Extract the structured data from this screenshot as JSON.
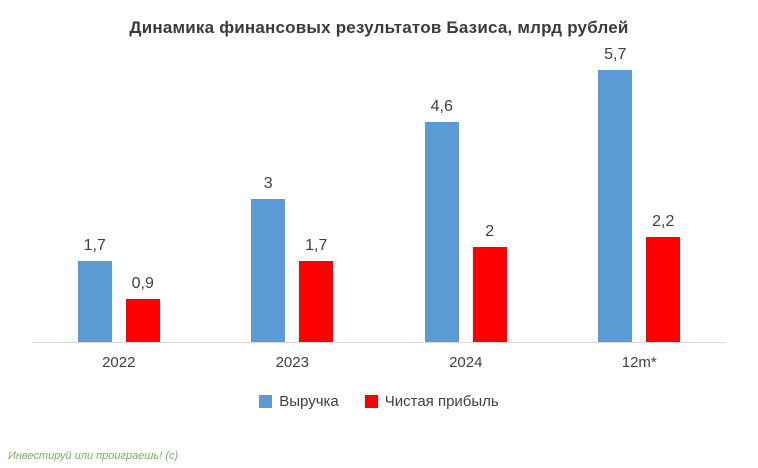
{
  "title": "Динамика финансовых результатов Базиса, млрд рублей",
  "watermark": "Инвестируй или проиграешь! (с)",
  "chart_data": {
    "type": "bar",
    "title": "Динамика финансовых результатов Базиса, млрд рублей",
    "categories": [
      "2022",
      "2023",
      "2024",
      "12m*"
    ],
    "series": [
      {
        "name": "Выручка",
        "color": "#5B9BD5",
        "values": [
          1.7,
          3,
          4.6,
          5.7
        ],
        "labels": [
          "1,7",
          "3",
          "4,6",
          "5,7"
        ]
      },
      {
        "name": "Чистая прибыль",
        "color": "#FF0000",
        "values": [
          0.9,
          1.7,
          2,
          2.2
        ],
        "labels": [
          "0,9",
          "1,7",
          "2",
          "2,2"
        ]
      }
    ],
    "xlabel": "",
    "ylabel": "",
    "ylim": [
      0,
      6
    ],
    "grid": false,
    "legend_position": "bottom"
  }
}
